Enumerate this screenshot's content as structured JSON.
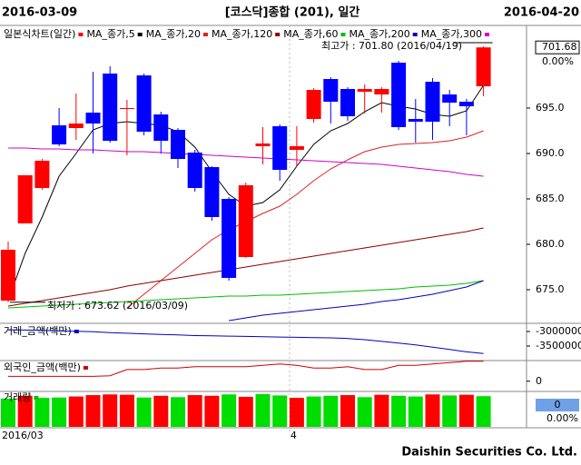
{
  "header": {
    "start": "2016-03-09",
    "title": "[코스닥]종합 (201), 일간",
    "end": "2016-04-20"
  },
  "footer": "Daishin Securities Co. Ltd.",
  "chart_data": [
    {
      "type": "candlestick",
      "legend_title": "일본식차트(일간)",
      "categories": [
        "2016/03",
        null,
        null,
        null,
        null,
        null,
        null,
        null,
        null,
        null,
        null,
        null,
        null,
        null,
        null,
        null,
        null,
        "4",
        null,
        null,
        null,
        null,
        null,
        null,
        null,
        null,
        null,
        null,
        null
      ],
      "up_color": "#ff0000",
      "down_color": "#0000ff",
      "open": [
        673.8,
        682.3,
        686.2,
        693.1,
        692.8,
        694.5,
        698.8,
        694.9,
        698.6,
        694.3,
        692.6,
        690.1,
        688.5,
        685.0,
        678.6,
        690.8,
        693.0,
        690.4,
        693.8,
        698.2,
        697.1,
        696.8,
        696.5,
        700.0,
        693.8,
        697.9,
        696.5,
        695.7,
        697.4
      ],
      "high": [
        680.3,
        687.6,
        689.4,
        695.0,
        696.6,
        699.0,
        699.6,
        695.9,
        698.8,
        694.6,
        692.8,
        690.4,
        688.6,
        685.2,
        686.8,
        692.9,
        693.2,
        693.0,
        697.2,
        698.4,
        697.3,
        697.6,
        697.3,
        700.2,
        696.0,
        698.3,
        697.0,
        696.0,
        701.8
      ],
      "low": [
        673.62,
        682.3,
        686.0,
        690.8,
        691.5,
        690.0,
        691.2,
        689.8,
        692.0,
        690.0,
        688.4,
        685.8,
        682.6,
        676.0,
        678.5,
        688.8,
        687.0,
        688.6,
        693.4,
        693.3,
        693.6,
        694.4,
        694.5,
        692.6,
        691.2,
        691.5,
        693.0,
        692.0,
        696.3
      ],
      "close": [
        679.4,
        687.6,
        689.2,
        691.0,
        693.3,
        693.3,
        691.4,
        695.0,
        692.4,
        691.4,
        689.4,
        686.2,
        683.0,
        676.3,
        686.5,
        691.1,
        688.2,
        690.8,
        697.0,
        695.7,
        694.1,
        697.1,
        697.1,
        692.9,
        693.5,
        693.5,
        695.6,
        695.2,
        701.68
      ],
      "series": [
        {
          "name": "MA_종가,5",
          "color": "#000000",
          "values": [
            673.8,
            679.0,
            683.0,
            687.5,
            690.0,
            692.6,
            693.3,
            693.5,
            693.3,
            693.1,
            692.4,
            690.7,
            688.0,
            685.5,
            684.2,
            684.6,
            686.0,
            688.6,
            691.0,
            692.5,
            693.3,
            694.6,
            695.6,
            695.2,
            694.9,
            694.3,
            694.1,
            694.7,
            697.5
          ]
        },
        {
          "name": "MA_종가,20",
          "color": "#e02020",
          "values": [
            null,
            null,
            null,
            null,
            null,
            null,
            null,
            673.0,
            674.5,
            676.0,
            677.5,
            679.0,
            680.5,
            681.6,
            682.5,
            683.4,
            684.2,
            685.5,
            687.0,
            688.3,
            689.3,
            690.2,
            690.7,
            691.0,
            691.1,
            691.2,
            691.4,
            691.8,
            692.5
          ]
        },
        {
          "name": "MA_종가,120",
          "color": "#8b0000",
          "values": [
            673.2,
            673.5,
            673.8,
            674.1,
            674.4,
            674.7,
            675.0,
            675.4,
            675.7,
            676.0,
            676.3,
            676.6,
            676.9,
            677.2,
            677.5,
            677.8,
            678.1,
            678.4,
            678.7,
            679.0,
            679.3,
            679.6,
            679.9,
            680.2,
            680.5,
            680.8,
            681.1,
            681.4,
            681.8
          ]
        },
        {
          "name": "MA_종가,60",
          "color": "#00c000",
          "values": [
            673.0,
            673.1,
            673.2,
            673.3,
            673.4,
            673.5,
            673.6,
            673.7,
            673.8,
            673.9,
            674.0,
            674.1,
            674.2,
            674.3,
            674.3,
            674.4,
            674.4,
            674.5,
            674.6,
            674.7,
            674.8,
            674.9,
            675.0,
            675.1,
            675.3,
            675.4,
            675.5,
            675.7,
            676.0
          ]
        },
        {
          "name": "MA_종가,200",
          "color": "#0000c0",
          "values": [
            null,
            null,
            null,
            null,
            null,
            null,
            null,
            null,
            null,
            null,
            null,
            null,
            null,
            671.6,
            671.9,
            672.2,
            672.4,
            672.6,
            672.8,
            673.0,
            673.2,
            673.4,
            673.7,
            673.9,
            674.2,
            674.5,
            674.9,
            675.3,
            676.0
          ]
        },
        {
          "name": "MA_종가,300",
          "color": "#d000d0",
          "values": [
            690.6,
            690.6,
            690.5,
            690.5,
            690.4,
            690.4,
            690.3,
            690.2,
            690.2,
            690.1,
            690.0,
            689.9,
            689.8,
            689.7,
            689.6,
            689.5,
            689.4,
            689.3,
            689.2,
            689.1,
            689.0,
            688.9,
            688.8,
            688.6,
            688.4,
            688.2,
            688.0,
            687.7,
            687.5
          ]
        }
      ],
      "ylim": [
        671.4,
        704.1
      ],
      "yticks": [
        {
          "value": 695,
          "label": "695.0"
        },
        {
          "value": 690,
          "label": "690.0"
        },
        {
          "value": 685,
          "label": "685.0"
        },
        {
          "value": 680,
          "label": "680.0"
        },
        {
          "value": 675,
          "label": "675.0"
        }
      ],
      "right_label": "0.00%",
      "annotations": [
        {
          "text": "최고가 : 701.80 (2016/04/19)",
          "color": "#ff0000"
        },
        {
          "text": "최저가 : 673.62 (2016/03/09)",
          "color": "#0000ff"
        }
      ]
    },
    {
      "type": "line",
      "series": [
        {
          "name": "거래_금액(백만)",
          "color": "#0000c0",
          "values": [
            -2940000,
            -2950000,
            -2960000,
            -2980000,
            -2990000,
            -3010000,
            -3040000,
            -3060000,
            -3080000,
            -3100000,
            -3120000,
            -3140000,
            -3150000,
            -3160000,
            -3170000,
            -3180000,
            -3190000,
            -3200000,
            -3210000,
            -3220000,
            -3240000,
            -3280000,
            -3340000,
            -3400000,
            -3460000,
            -3540000,
            -3620000,
            -3700000,
            -3760000
          ]
        }
      ],
      "ylim": [
        -3968750,
        -2750000
      ],
      "yticks": [
        -3000000,
        -3500000
      ]
    },
    {
      "type": "line",
      "series": [
        {
          "name": "외국인_금액(백만)",
          "color": "#d00000",
          "values": [
            700,
            700,
            700,
            700,
            700,
            700,
            800,
            1700,
            1700,
            1900,
            1900,
            2100,
            2100,
            2100,
            2100,
            2300,
            2500,
            2300,
            1900,
            1900,
            2100,
            1700,
            1700,
            2300,
            2300,
            2500,
            2700,
            2900,
            2900
          ]
        }
      ],
      "ylim": [
        -1350,
        3000
      ],
      "yticks": [
        0
      ]
    },
    {
      "type": "bar",
      "series": [
        {
          "name": "거래량",
          "color": "#00c000",
          "values": [
            82,
            90,
            84,
            85,
            88,
            92,
            94,
            93,
            85,
            90,
            86,
            92,
            90,
            94,
            87,
            95,
            91,
            84,
            88,
            90,
            92,
            86,
            93,
            90,
            88,
            94,
            91,
            93,
            89
          ]
        }
      ],
      "colors": [
        "#00dd00",
        "#ff0000",
        "#00dd00",
        "#00dd00",
        "#ff0000",
        "#ff0000",
        "#ff0000",
        "#ff0000",
        "#00dd00",
        "#ff0000",
        "#00dd00",
        "#ff0000",
        "#ff0000",
        "#00dd00",
        "#ff0000",
        "#00dd00",
        "#00dd00",
        "#ff0000",
        "#00dd00",
        "#00dd00",
        "#ff0000",
        "#00dd00",
        "#ff0000",
        "#00dd00",
        "#00dd00",
        "#ff0000",
        "#00dd00",
        "#ff0000",
        "#00dd00"
      ],
      "ylim": [
        0,
        100
      ],
      "right_labels": [
        "0",
        "0.00%"
      ]
    }
  ]
}
